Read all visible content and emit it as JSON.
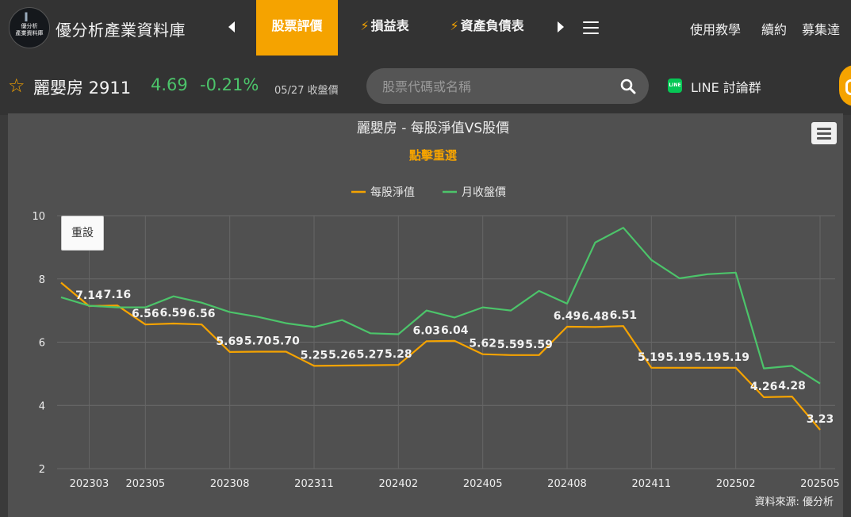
{
  "header": {
    "logo_text": [
      "優分析",
      "產業資料庫"
    ],
    "brand": "優分析產業資料庫",
    "tabs": [
      {
        "label": "股票評價",
        "active": true
      },
      {
        "label": "損益表",
        "icon": "bolt-icon"
      },
      {
        "label": "資產負債表",
        "icon": "bolt-icon"
      }
    ],
    "links": [
      "使用教學",
      "續約",
      "募集達"
    ]
  },
  "stock": {
    "name_code": "麗嬰房 2911",
    "price": "4.69",
    "change": "-0.21%",
    "date": "05/27 收盤價",
    "color_up": "#4cc46a"
  },
  "search": {
    "placeholder": "股票代碼或名稱"
  },
  "line_group": {
    "icon_text": "LINE",
    "label": "LINE 討論群"
  },
  "chart_data": {
    "type": "line",
    "title": "麗嬰房 - 每股淨值VS股價",
    "subtitle": "點擊重選",
    "reset_label": "重設",
    "source": "資料來源: 優分析",
    "ylim": [
      2,
      10
    ],
    "yticks": [
      2,
      4,
      6,
      8,
      10
    ],
    "xticks": [
      {
        "label": "202303",
        "i": 1
      },
      {
        "label": "202305",
        "i": 3
      },
      {
        "label": "202308",
        "i": 6
      },
      {
        "label": "202311",
        "i": 9
      },
      {
        "label": "202402",
        "i": 12
      },
      {
        "label": "202405",
        "i": 15
      },
      {
        "label": "202408",
        "i": 18
      },
      {
        "label": "202411",
        "i": 21
      },
      {
        "label": "202502",
        "i": 24
      },
      {
        "label": "202505",
        "i": 27
      }
    ],
    "x": [
      "202302",
      "202303",
      "202304",
      "202305",
      "202306",
      "202307",
      "202308",
      "202309",
      "202310",
      "202311",
      "202312",
      "202401",
      "202402",
      "202403",
      "202404",
      "202405",
      "202406",
      "202407",
      "202408",
      "202409",
      "202410",
      "202411",
      "202412",
      "202501",
      "202502",
      "202503",
      "202504",
      "202505"
    ],
    "series": [
      {
        "name": "每股淨值",
        "color": "#f5a300",
        "values": [
          7.88,
          7.14,
          7.16,
          6.56,
          6.59,
          6.56,
          5.69,
          5.7,
          5.7,
          5.25,
          5.26,
          5.27,
          5.28,
          6.03,
          6.04,
          5.62,
          5.59,
          5.59,
          6.49,
          6.48,
          6.51,
          5.19,
          5.19,
          5.19,
          5.19,
          4.26,
          4.28,
          3.23
        ],
        "labels": [
          "",
          "7.14",
          "7.16",
          "6.56",
          "6.59",
          "6.56",
          "5.69",
          "5.70",
          "5.70",
          "5.25",
          "5.26",
          "5.27",
          "5.28",
          "6.03",
          "6.04",
          "5.62",
          "5.59",
          "5.59",
          "6.49",
          "6.48",
          "6.51",
          "5.19",
          "5.19",
          "5.19",
          "5.19",
          "4.26",
          "4.28",
          "3.23"
        ]
      },
      {
        "name": "月收盤價",
        "color": "#4cc46a",
        "values": [
          7.42,
          7.15,
          7.1,
          7.1,
          7.45,
          7.25,
          6.95,
          6.8,
          6.6,
          6.48,
          6.7,
          6.28,
          6.25,
          7.0,
          6.78,
          7.1,
          7.0,
          7.62,
          7.22,
          9.15,
          9.62,
          8.6,
          8.02,
          8.15,
          8.2,
          5.17,
          5.25,
          4.69
        ]
      }
    ]
  }
}
